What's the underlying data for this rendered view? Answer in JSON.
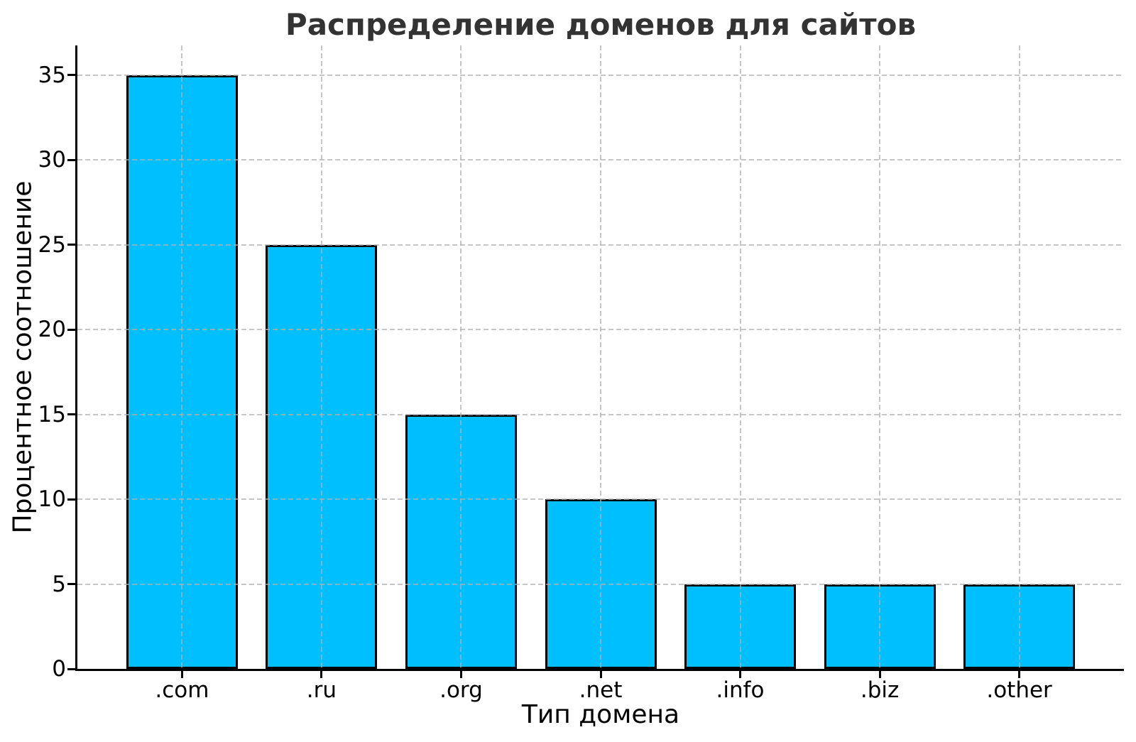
{
  "chart_data": {
    "type": "bar",
    "title": "Распределение доменов для сайтов",
    "xlabel": "Тип домена",
    "ylabel": "Процентное соотношение",
    "categories": [
      ".com",
      ".ru",
      ".org",
      ".net",
      ".info",
      ".biz",
      ".other"
    ],
    "values": [
      35,
      25,
      15,
      10,
      5,
      5,
      5
    ],
    "yticks": [
      0,
      5,
      10,
      15,
      20,
      25,
      30,
      35
    ],
    "ylim": [
      0,
      36.75
    ],
    "bar_width_fraction": 0.8,
    "grid": "dashed horizontal and vertical gridlines, drawn over bars",
    "legend_position": "none",
    "colors": {
      "bar_fill": "#00BFFF",
      "bar_edge": "#000000",
      "grid": "#b0b0b0",
      "axis": "#000000",
      "title_text": "#333333",
      "tick_text": "#000000",
      "background": "#ffffff"
    }
  }
}
